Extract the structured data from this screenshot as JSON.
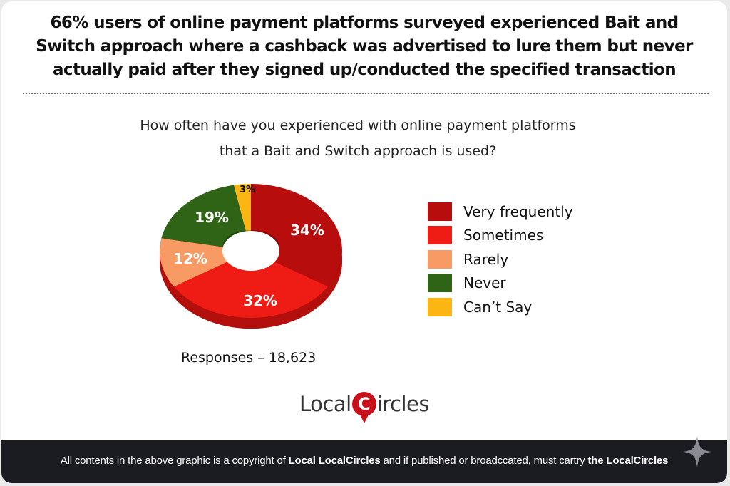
{
  "headline": {
    "line1": "66% users of online payment platforms surveyed experienced Bait and",
    "line2": "Switch approach where a cashback was advertised to lure them but never",
    "line3": "actually paid after they signed up/conducted the specified transaction"
  },
  "question": {
    "line1": "How often have you experienced with online payment platforms",
    "line2": "that a Bait and Switch approach is used?"
  },
  "legend": [
    {
      "label": "Very frequently",
      "color": "#b80d0d"
    },
    {
      "label": "Sometimes",
      "color": "#ee1c14"
    },
    {
      "label": "Rarely",
      "color": "#f79a63"
    },
    {
      "label": "Never",
      "color": "#2f6416"
    },
    {
      "label": "Can’t Say",
      "color": "#fbb614"
    }
  ],
  "slice_labels": {
    "very_frequently": "34%",
    "sometimes": "32%",
    "rarely": "12%",
    "never": "19%",
    "cant_say": "3%"
  },
  "responses": "Responses – 18,623",
  "logo": {
    "left": "Local",
    "c": "C",
    "right": "ircles"
  },
  "footer": {
    "part1": "All contents in the above graphic is a copyright of ",
    "bold1": "Local LocalCircles",
    "part2": " and if published or broadccated, must cartry ",
    "bold2": "the LocalCircles"
  },
  "chart_data": {
    "type": "pie",
    "title": "How often have you experienced with online payment platforms that a Bait and Switch approach is used?",
    "categories": [
      "Very frequently",
      "Sometimes",
      "Rarely",
      "Never",
      "Can't Say"
    ],
    "values": [
      34,
      32,
      12,
      19,
      3
    ],
    "colors": [
      "#b80d0d",
      "#ee1c14",
      "#f79a63",
      "#2f6416",
      "#fbb614"
    ],
    "donut": true,
    "legend_position": "right",
    "total_responses": 18623
  }
}
